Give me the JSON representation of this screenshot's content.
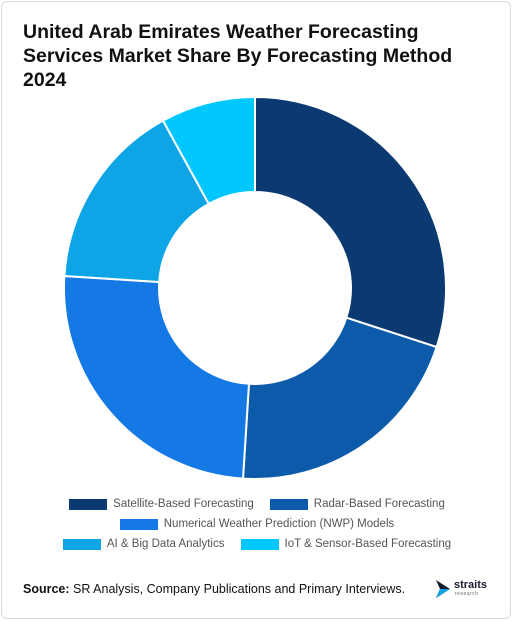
{
  "title": "United Arab Emirates Weather Forecasting Services Market Share By Forecasting Method 2024",
  "source": {
    "label": "Source:",
    "text": " SR Analysis, Company Publications and Primary Interviews."
  },
  "logo": {
    "name": "straits",
    "sub": "research"
  },
  "chart_data": {
    "type": "pie",
    "donut": true,
    "title": "United Arab Emirates Weather Forecasting Services Market Share By Forecasting Method 2024",
    "legend_position": "bottom",
    "categories": [
      "Satellite-Based Forecasting",
      "Radar-Based Forecasting",
      "Numerical Weather Prediction (NWP) Models",
      "AI & Big Data Analytics",
      "IoT & Sensor-Based Forecasting"
    ],
    "values": [
      30,
      21,
      25,
      16,
      8
    ],
    "colors": [
      "#0b3a73",
      "#0c5aaa",
      "#1478e5",
      "#0ea5e6",
      "#00c8ff"
    ]
  }
}
